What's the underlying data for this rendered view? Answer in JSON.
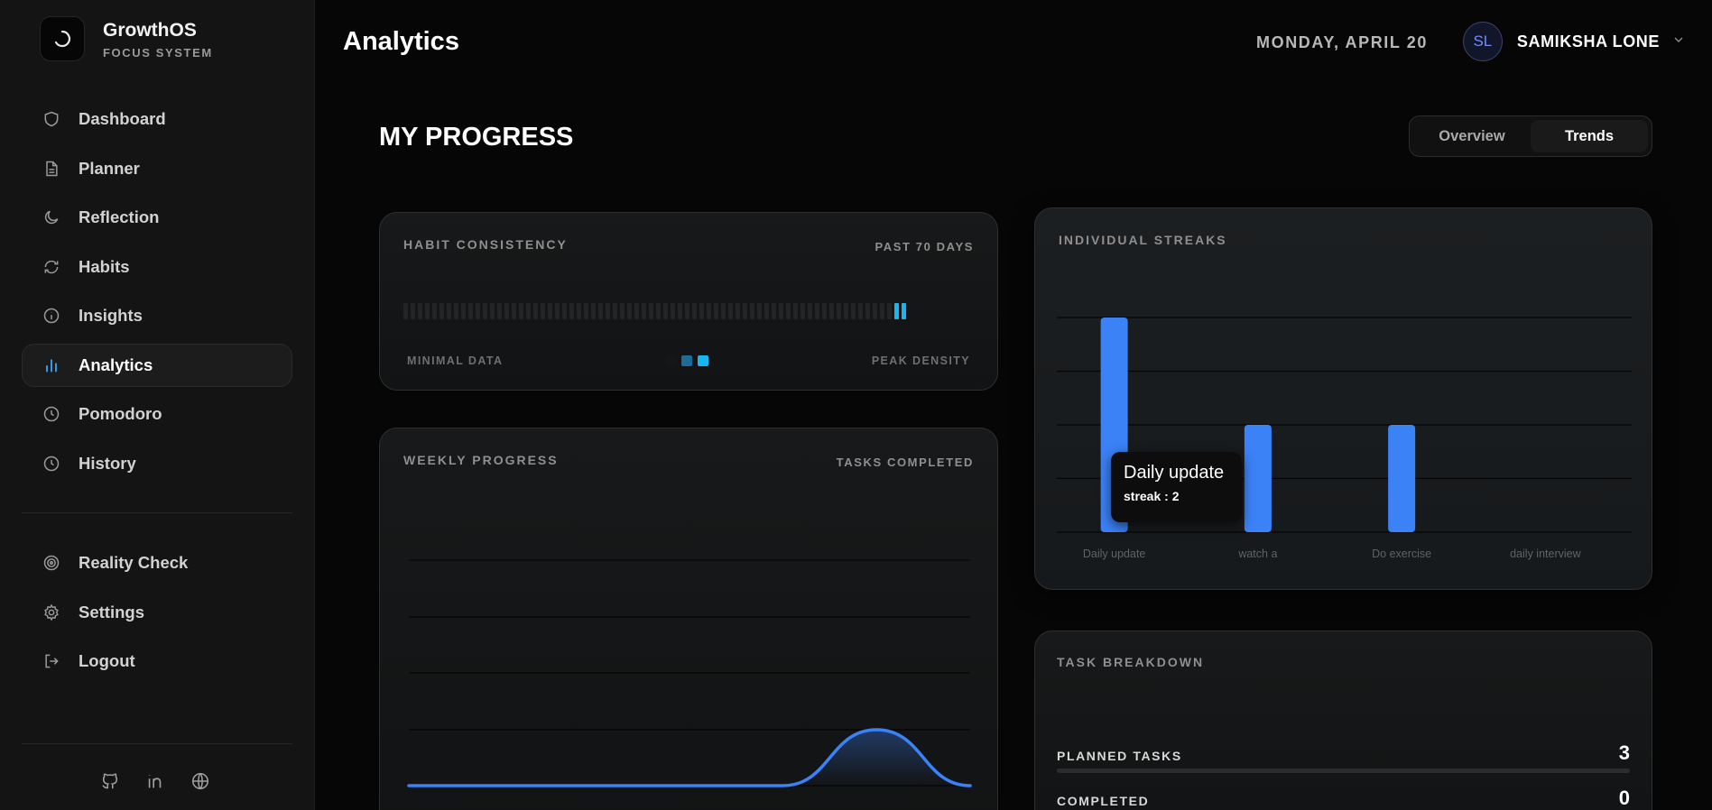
{
  "brand": {
    "name": "GrowthOS",
    "subtitle": "FOCUS SYSTEM"
  },
  "sidebar": {
    "items": [
      {
        "label": "Dashboard",
        "icon": "shield-icon",
        "active": false
      },
      {
        "label": "Planner",
        "icon": "document-icon",
        "active": false
      },
      {
        "label": "Reflection",
        "icon": "moon-icon",
        "active": false
      },
      {
        "label": "Habits",
        "icon": "refresh-icon",
        "active": false
      },
      {
        "label": "Insights",
        "icon": "info-icon",
        "active": false
      },
      {
        "label": "Analytics",
        "icon": "bar-chart-icon",
        "active": true
      },
      {
        "label": "Pomodoro",
        "icon": "clock-icon",
        "active": false
      },
      {
        "label": "History",
        "icon": "history-icon",
        "active": false
      }
    ],
    "bottom_items": [
      {
        "label": "Reality Check",
        "icon": "target-icon"
      },
      {
        "label": "Settings",
        "icon": "gear-icon"
      },
      {
        "label": "Logout",
        "icon": "logout-icon"
      }
    ],
    "social": [
      "github-icon",
      "linkedin-icon",
      "globe-icon"
    ]
  },
  "header": {
    "title": "Analytics",
    "date": "MONDAY, APRIL 20",
    "user": {
      "initials": "SL",
      "name": "SAMIKSHA LONE"
    }
  },
  "section": {
    "title": "MY PROGRESS",
    "tabs": {
      "overview": "Overview",
      "trends": "Trends",
      "active": "Trends"
    }
  },
  "habit_consistency": {
    "title": "HABIT CONSISTENCY",
    "range": "PAST 70 DAYS",
    "days_total": 70,
    "active_days": [
      69,
      70
    ],
    "legend_min": "MINIMAL DATA",
    "legend_max": "PEAK DENSITY",
    "legend_colors": [
      "#151617",
      "#1b6d97",
      "#18b6f0"
    ],
    "active_color": "#18b6f0"
  },
  "weekly_progress": {
    "title": "WEEKLY PROGRESS",
    "subtitle": "TASKS COMPLETED"
  },
  "individual_streaks": {
    "title": "INDIVIDUAL STREAKS",
    "tooltip": {
      "title": "Daily update",
      "value": "streak : 2"
    }
  },
  "task_breakdown": {
    "title": "TASK BREAKDOWN",
    "rows": [
      {
        "label": "PLANNED TASKS",
        "value": "3"
      },
      {
        "label": "COMPLETED",
        "value": "0"
      }
    ]
  },
  "chart_data": [
    {
      "type": "bar",
      "title": "INDIVIDUAL STREAKS",
      "categories": [
        "Daily update",
        "watch a",
        "Do exercise",
        "daily interview"
      ],
      "values": [
        2,
        1,
        1,
        0
      ],
      "ylim": [
        0,
        2
      ],
      "grid": true,
      "bar_color": "#3b82f6",
      "highlighted_category": "Daily update"
    },
    {
      "type": "area",
      "title": "WEEKLY PROGRESS",
      "x": [
        "",
        "",
        "",
        "",
        "",
        "",
        ""
      ],
      "values": [
        0,
        0,
        0,
        0,
        0,
        1,
        0
      ],
      "ylim": [
        0,
        1
      ],
      "grid": true,
      "line_color": "#3b82f6"
    }
  ]
}
